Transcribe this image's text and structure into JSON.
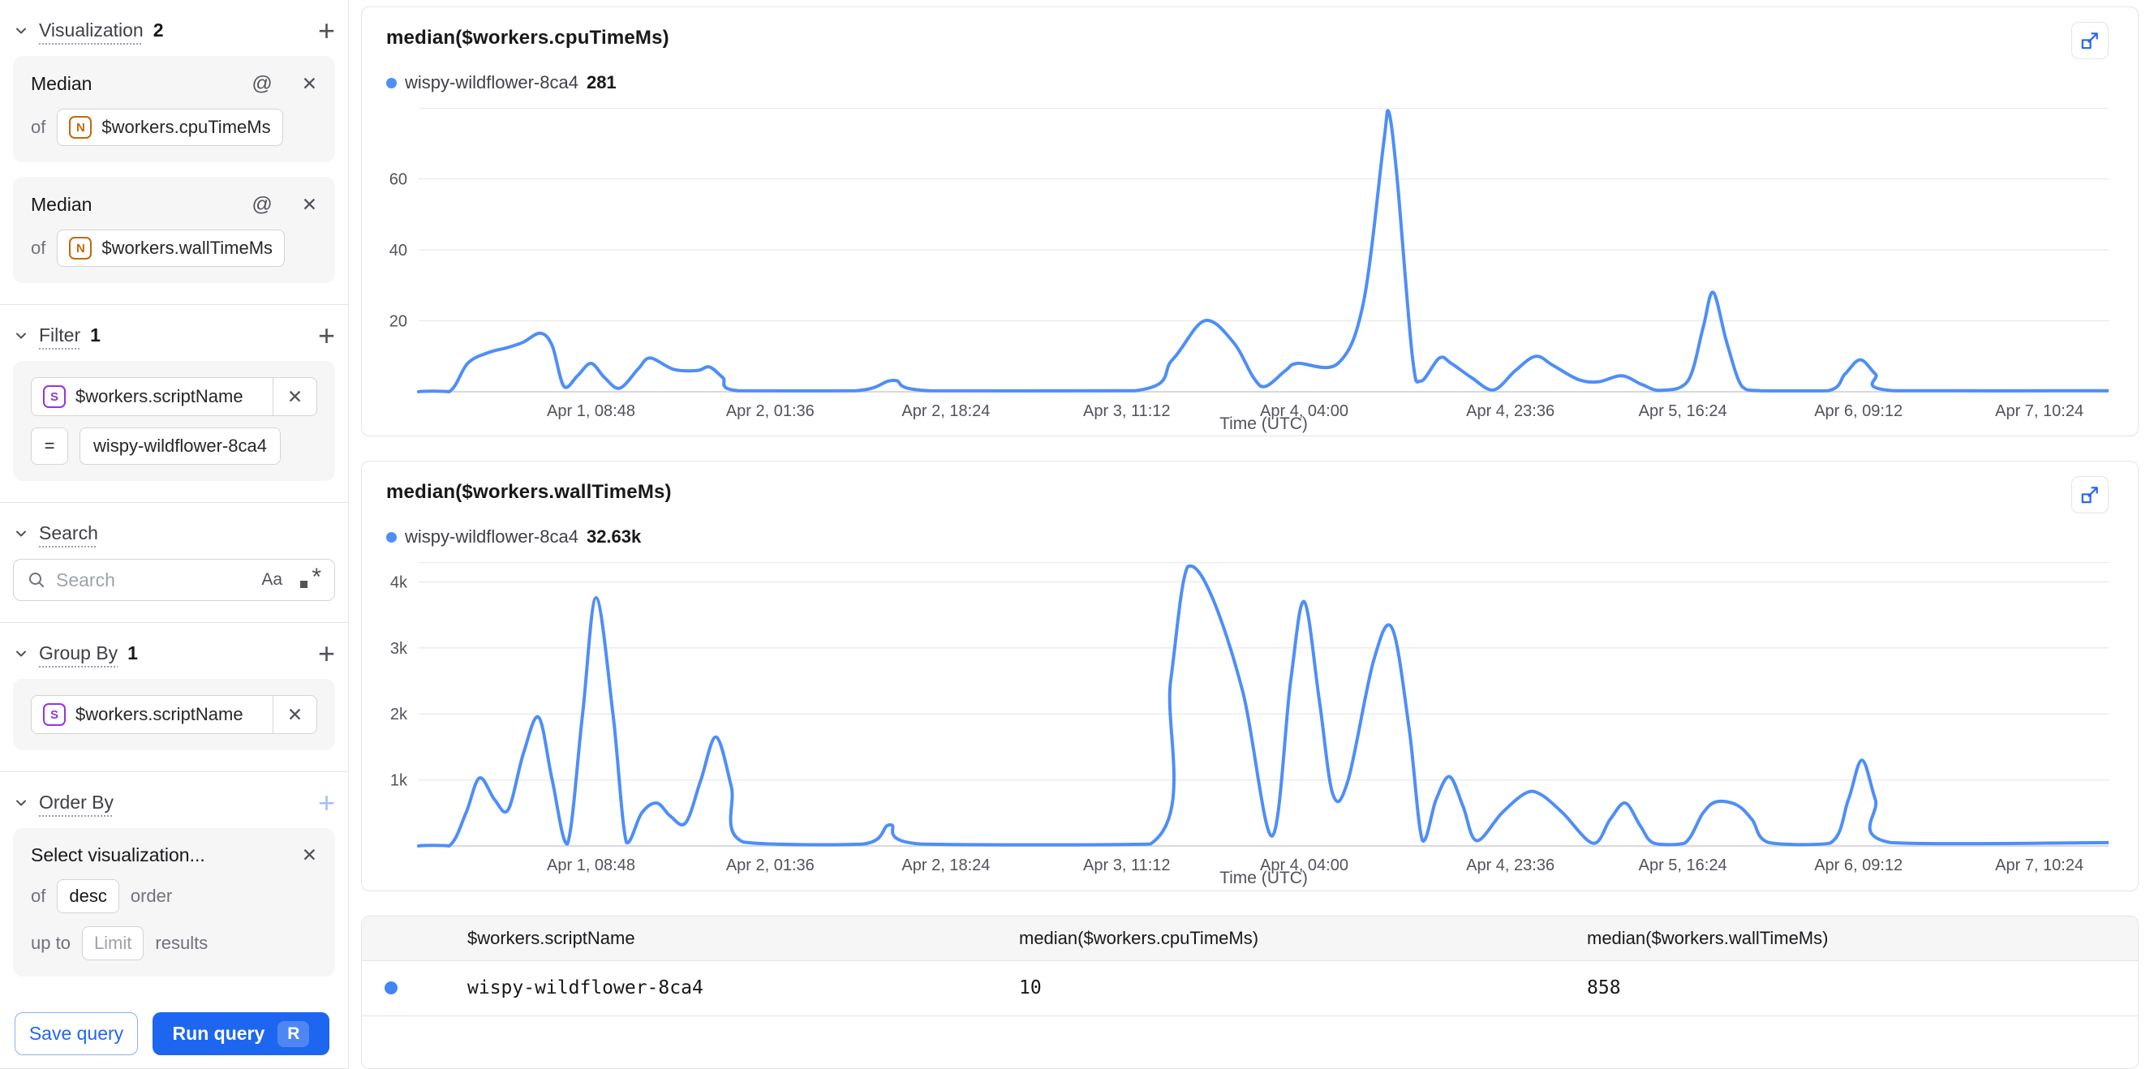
{
  "sidebar": {
    "visualization": {
      "label": "Visualization",
      "count": "2",
      "metrics": [
        {
          "agg": "Median",
          "of_label": "of",
          "field": "$workers.cpuTimeMs",
          "type_icon": "N"
        },
        {
          "agg": "Median",
          "of_label": "of",
          "field": "$workers.wallTimeMs",
          "type_icon": "N"
        }
      ]
    },
    "filter": {
      "label": "Filter",
      "count": "1",
      "field": "$workers.scriptName",
      "type_icon": "S",
      "operator": "=",
      "value": "wispy-wildflower-8ca4"
    },
    "search": {
      "label": "Search",
      "placeholder": "Search",
      "match_case_icon": "Aa",
      "regex_icon": ".*"
    },
    "group_by": {
      "label": "Group By",
      "count": "1",
      "field": "$workers.scriptName",
      "type_icon": "S"
    },
    "order_by": {
      "label": "Order By",
      "select_placeholder": "Select visualization...",
      "of_label": "of",
      "direction": "desc",
      "order_label": "order",
      "up_to_label": "up to",
      "limit_placeholder": "Limit",
      "results_label": "results"
    },
    "actions": {
      "save": "Save query",
      "run": "Run query",
      "run_shortcut": "R"
    }
  },
  "colors": {
    "accent_blue": "#1d66f0",
    "line_blue": "#4e8ef7",
    "table_dot_blue": "#4285f4",
    "number_field_icon": "#c2690c",
    "string_field_icon": "#9333ea"
  },
  "chart_data": [
    {
      "type": "line",
      "title": "median($workers.cpuTimeMs)",
      "legend": {
        "series": "wispy-wildflower-8ca4",
        "value": "281"
      },
      "xlabel": "Time (UTC)",
      "color": "#4e8ef7",
      "ylim": [
        0,
        80
      ],
      "grid": true,
      "legend_position": "top-left",
      "y_ticks": [
        {
          "v": 20,
          "label": "20"
        },
        {
          "v": 40,
          "label": "40"
        },
        {
          "v": 60,
          "label": "60"
        }
      ],
      "x_ticks": [
        {
          "f": 0.102,
          "label": "Apr 1, 08:48"
        },
        {
          "f": 0.208,
          "label": "Apr 2, 01:36"
        },
        {
          "f": 0.312,
          "label": "Apr 2, 18:24"
        },
        {
          "f": 0.419,
          "label": "Apr 3, 11:12"
        },
        {
          "f": 0.524,
          "label": "Apr 4, 04:00"
        },
        {
          "f": 0.646,
          "label": "Apr 4, 23:36"
        },
        {
          "f": 0.748,
          "label": "Apr 5, 16:24"
        },
        {
          "f": 0.852,
          "label": "Apr 6, 09:12"
        },
        {
          "f": 0.959,
          "label": "Apr 7, 10:24"
        }
      ],
      "points": [
        [
          0,
          0
        ],
        [
          0.018,
          0
        ],
        [
          0.029,
          8
        ],
        [
          0.041,
          11
        ],
        [
          0.053,
          12.5
        ],
        [
          0.062,
          14
        ],
        [
          0.072,
          16.5
        ],
        [
          0.079,
          13
        ],
        [
          0.086,
          1.5
        ],
        [
          0.094,
          4.5
        ],
        [
          0.102,
          8
        ],
        [
          0.11,
          4
        ],
        [
          0.119,
          1
        ],
        [
          0.13,
          6.5
        ],
        [
          0.137,
          9.5
        ],
        [
          0.151,
          6.3
        ],
        [
          0.165,
          6
        ],
        [
          0.172,
          7
        ],
        [
          0.18,
          4
        ],
        [
          0.189,
          0.3
        ],
        [
          0.259,
          0.3
        ],
        [
          0.281,
          3.2
        ],
        [
          0.302,
          0.3
        ],
        [
          0.424,
          0.3
        ],
        [
          0.446,
          9
        ],
        [
          0.465,
          20
        ],
        [
          0.482,
          14
        ],
        [
          0.494,
          4
        ],
        [
          0.501,
          1.5
        ],
        [
          0.513,
          6
        ],
        [
          0.52,
          8
        ],
        [
          0.544,
          8
        ],
        [
          0.559,
          25
        ],
        [
          0.571,
          70
        ],
        [
          0.574,
          79
        ],
        [
          0.579,
          60
        ],
        [
          0.588,
          10
        ],
        [
          0.593,
          3
        ],
        [
          0.604,
          9.5
        ],
        [
          0.611,
          8
        ],
        [
          0.623,
          4
        ],
        [
          0.636,
          0.5
        ],
        [
          0.649,
          6
        ],
        [
          0.661,
          10
        ],
        [
          0.671,
          7.5
        ],
        [
          0.686,
          3.5
        ],
        [
          0.698,
          2.8
        ],
        [
          0.712,
          4.5
        ],
        [
          0.724,
          2
        ],
        [
          0.735,
          0.4
        ],
        [
          0.751,
          3
        ],
        [
          0.76,
          18
        ],
        [
          0.766,
          28
        ],
        [
          0.774,
          14
        ],
        [
          0.783,
          1.5
        ],
        [
          0.794,
          0.3
        ],
        [
          0.834,
          0.3
        ],
        [
          0.844,
          5
        ],
        [
          0.853,
          9
        ],
        [
          0.862,
          5
        ],
        [
          0.873,
          0.3
        ],
        [
          1,
          0.3
        ]
      ]
    },
    {
      "type": "line",
      "title": "median($workers.wallTimeMs)",
      "legend": {
        "series": "wispy-wildflower-8ca4",
        "value": "32.63k"
      },
      "xlabel": "Time (UTC)",
      "color": "#4e8ef7",
      "ylim": [
        0,
        4300
      ],
      "grid": true,
      "legend_position": "top-left",
      "y_ticks": [
        {
          "v": 1000,
          "label": "1k"
        },
        {
          "v": 2000,
          "label": "2k"
        },
        {
          "v": 3000,
          "label": "3k"
        },
        {
          "v": 4000,
          "label": "4k"
        }
      ],
      "x_ticks": [
        {
          "f": 0.102,
          "label": "Apr 1, 08:48"
        },
        {
          "f": 0.208,
          "label": "Apr 2, 01:36"
        },
        {
          "f": 0.312,
          "label": "Apr 2, 18:24"
        },
        {
          "f": 0.419,
          "label": "Apr 3, 11:12"
        },
        {
          "f": 0.524,
          "label": "Apr 4, 04:00"
        },
        {
          "f": 0.646,
          "label": "Apr 4, 23:36"
        },
        {
          "f": 0.748,
          "label": "Apr 5, 16:24"
        },
        {
          "f": 0.852,
          "label": "Apr 6, 09:12"
        },
        {
          "f": 0.959,
          "label": "Apr 7, 10:24"
        }
      ],
      "points": [
        [
          0,
          0
        ],
        [
          0.018,
          0
        ],
        [
          0.028,
          500
        ],
        [
          0.036,
          1030
        ],
        [
          0.045,
          700
        ],
        [
          0.053,
          550
        ],
        [
          0.062,
          1400
        ],
        [
          0.071,
          1950
        ],
        [
          0.079,
          1000
        ],
        [
          0.088,
          30
        ],
        [
          0.097,
          2000
        ],
        [
          0.105,
          3760
        ],
        [
          0.115,
          2000
        ],
        [
          0.123,
          50
        ],
        [
          0.132,
          500
        ],
        [
          0.141,
          650
        ],
        [
          0.149,
          450
        ],
        [
          0.158,
          350
        ],
        [
          0.167,
          1000
        ],
        [
          0.176,
          1650
        ],
        [
          0.185,
          900
        ],
        [
          0.192,
          60
        ],
        [
          0.263,
          30
        ],
        [
          0.279,
          320
        ],
        [
          0.297,
          30
        ],
        [
          0.433,
          30
        ],
        [
          0.445,
          2500
        ],
        [
          0.455,
          4230
        ],
        [
          0.469,
          3800
        ],
        [
          0.488,
          2300
        ],
        [
          0.505,
          150
        ],
        [
          0.516,
          2500
        ],
        [
          0.524,
          3700
        ],
        [
          0.533,
          2200
        ],
        [
          0.541,
          780
        ],
        [
          0.55,
          1000
        ],
        [
          0.565,
          2800
        ],
        [
          0.576,
          3300
        ],
        [
          0.586,
          1800
        ],
        [
          0.594,
          80
        ],
        [
          0.602,
          700
        ],
        [
          0.61,
          1050
        ],
        [
          0.618,
          600
        ],
        [
          0.626,
          80
        ],
        [
          0.641,
          500
        ],
        [
          0.655,
          800
        ],
        [
          0.664,
          780
        ],
        [
          0.677,
          500
        ],
        [
          0.695,
          40
        ],
        [
          0.705,
          400
        ],
        [
          0.714,
          650
        ],
        [
          0.723,
          300
        ],
        [
          0.731,
          40
        ],
        [
          0.749,
          40
        ],
        [
          0.76,
          500
        ],
        [
          0.768,
          670
        ],
        [
          0.78,
          620
        ],
        [
          0.789,
          400
        ],
        [
          0.799,
          50
        ],
        [
          0.835,
          40
        ],
        [
          0.846,
          700
        ],
        [
          0.854,
          1300
        ],
        [
          0.862,
          700
        ],
        [
          0.871,
          50
        ],
        [
          1,
          50
        ]
      ]
    }
  ],
  "table": {
    "columns": [
      "$workers.scriptName",
      "median($workers.cpuTimeMs)",
      "median($workers.wallTimeMs)"
    ],
    "rows": [
      [
        "wispy-wildflower-8ca4",
        "10",
        "858"
      ]
    ]
  }
}
